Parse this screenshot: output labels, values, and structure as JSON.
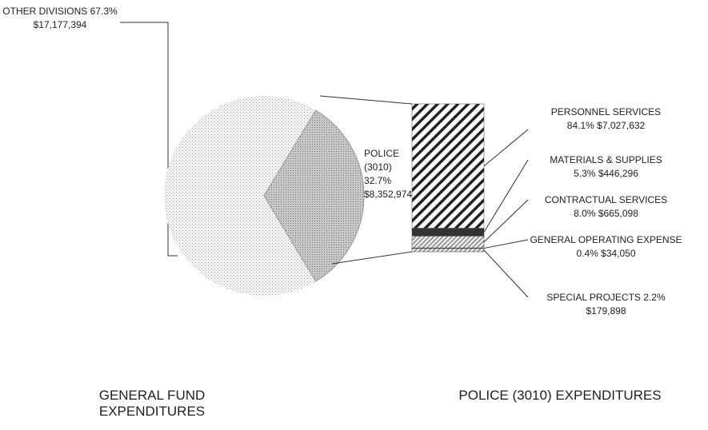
{
  "chart_data": [
    {
      "type": "pie",
      "title": "GENERAL FUND EXPENDITURES",
      "categories": [
        "OTHER DIVISIONS",
        "POLICE (3010)"
      ],
      "values": [
        67.3,
        32.7
      ],
      "value_labels": [
        "67.3%",
        "32.7%"
      ],
      "dollar_labels": [
        "$17,177,394",
        "$8,352,974"
      ]
    },
    {
      "type": "bar",
      "title": "POLICE (3010) EXPENDITURES",
      "categories": [
        "PERSONNEL SERVICES",
        "MATERIALS & SUPPLIES",
        "CONTRACTUAL SERVICES",
        "GENERAL OPERATING EXPENSE",
        "SPECIAL PROJECTS"
      ],
      "values": [
        84.1,
        5.3,
        8.0,
        0.4,
        2.2
      ],
      "value_labels": [
        "84.1%",
        "5.3%",
        "8.0%",
        "0.4%",
        "2.2%"
      ],
      "dollar_labels": [
        "$7,027,632",
        "$446,296",
        "$665,098",
        "$34,050",
        "$179,898"
      ]
    }
  ]
}
